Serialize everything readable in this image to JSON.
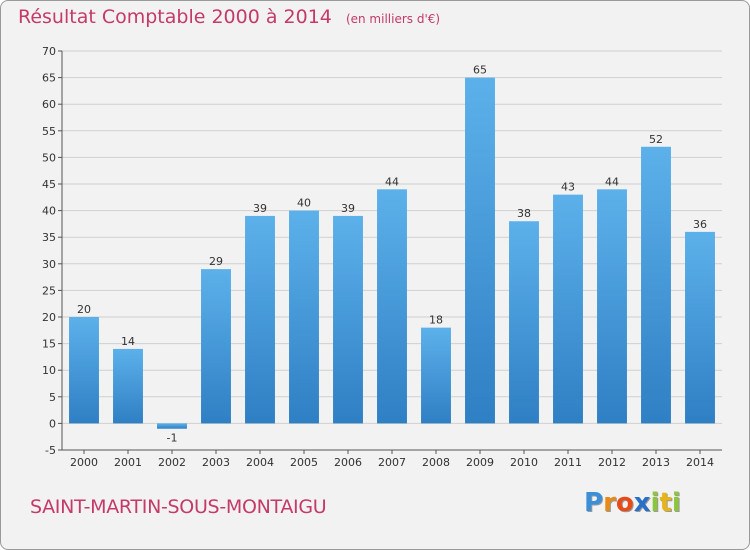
{
  "chart_data": {
    "type": "bar",
    "title": "Résultat Comptable 2000 à 2014",
    "subtitle": "(en milliers d'€)",
    "categories": [
      "2000",
      "2001",
      "2002",
      "2003",
      "2004",
      "2005",
      "2006",
      "2007",
      "2008",
      "2009",
      "2010",
      "2011",
      "2012",
      "2013",
      "2014"
    ],
    "values": [
      20,
      14,
      -1,
      29,
      39,
      40,
      39,
      44,
      18,
      65,
      38,
      43,
      44,
      52,
      36
    ],
    "data_labels": [
      "20",
      "14",
      "-1",
      "29",
      "39",
      "40",
      "39",
      "44",
      "18",
      "65",
      "38",
      "43",
      "44",
      "52",
      "36"
    ],
    "yticks": [
      "-5",
      "0",
      "5",
      "10",
      "15",
      "20",
      "25",
      "30",
      "35",
      "40",
      "45",
      "50",
      "55",
      "60",
      "65",
      "70"
    ],
    "ylim": [
      -5,
      70
    ],
    "grid": true,
    "bar_color": "#4aa3e0"
  },
  "footer": {
    "location": "SAINT-MARTIN-SOUS-MONTAIGU",
    "brand_letters": [
      "P",
      "r",
      "o",
      "x",
      "i",
      "t",
      "i"
    ],
    "brand_colors": [
      "#3a8fd8",
      "#e88a1a",
      "#e84a1a",
      "#2a70c8",
      "#8cc63f",
      "#e8b41a",
      "#8cc63f"
    ]
  }
}
